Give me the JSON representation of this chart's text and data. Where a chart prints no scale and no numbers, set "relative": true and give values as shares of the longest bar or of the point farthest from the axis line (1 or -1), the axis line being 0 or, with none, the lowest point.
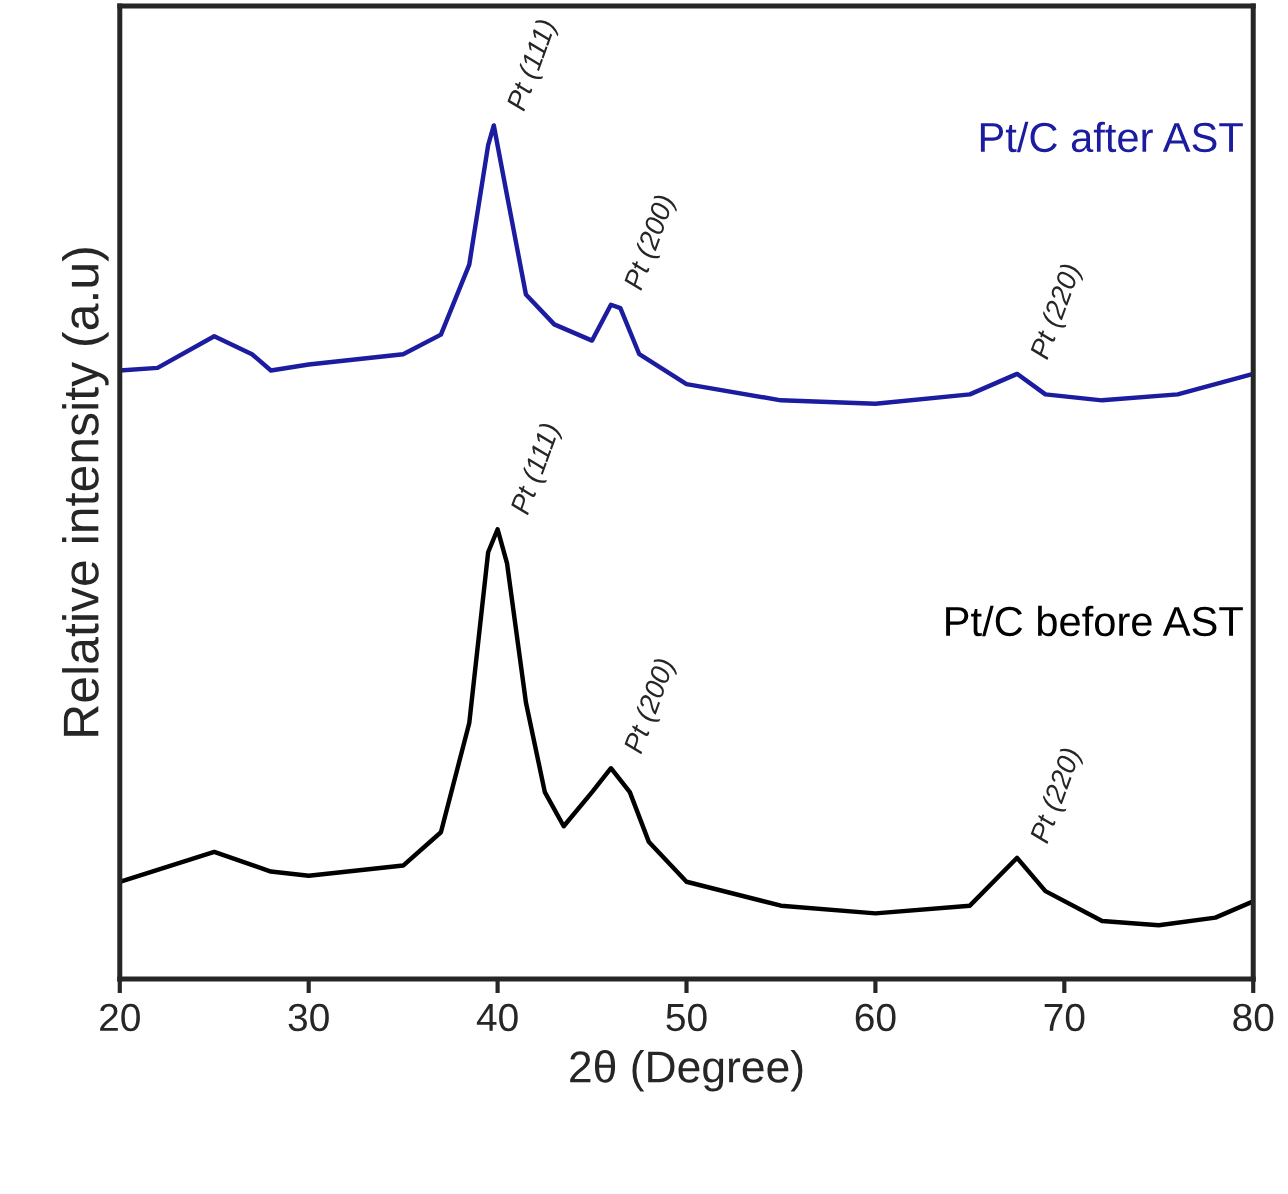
{
  "chart_data": {
    "type": "line",
    "xlabel": "2θ (Degree)",
    "ylabel": "Relative intensity (a.u)",
    "relative": true,
    "xlim": [
      20,
      80
    ],
    "xticks": [
      20,
      30,
      40,
      50,
      60,
      70,
      80
    ],
    "tick_labels": "x",
    "grid": false,
    "legend": false,
    "marker": "none",
    "line_style": "solid",
    "series": [
      {
        "name": "Pt/C after AST",
        "color": "#1c1ca0",
        "x": [
          20,
          22,
          25,
          27,
          28,
          30,
          35,
          37,
          38.5,
          39.5,
          39.8,
          40.5,
          41.5,
          43,
          45,
          46,
          46.5,
          47.5,
          50,
          55,
          60,
          65,
          67.5,
          69,
          72,
          76,
          80
        ],
        "values": [
          0.713,
          0.716,
          0.753,
          0.732,
          0.713,
          0.72,
          0.732,
          0.755,
          0.837,
          0.977,
          1.0,
          0.918,
          0.802,
          0.767,
          0.748,
          0.79,
          0.786,
          0.732,
          0.697,
          0.678,
          0.674,
          0.685,
          0.709,
          0.685,
          0.678,
          0.685,
          0.709
        ]
      },
      {
        "name": "Pt/C before AST",
        "color": "#000000",
        "x": [
          20,
          25,
          28,
          30,
          35,
          37,
          38.5,
          39.5,
          40,
          40.5,
          41.5,
          42.5,
          43.5,
          45,
          46,
          47,
          48,
          50,
          55,
          60,
          65,
          67.5,
          69,
          72,
          75,
          78,
          80
        ],
        "values": [
          0.114,
          0.149,
          0.126,
          0.121,
          0.133,
          0.172,
          0.3,
          0.5,
          0.527,
          0.487,
          0.324,
          0.219,
          0.179,
          0.219,
          0.247,
          0.219,
          0.161,
          0.114,
          0.086,
          0.077,
          0.086,
          0.142,
          0.103,
          0.068,
          0.063,
          0.072,
          0.091
        ]
      }
    ],
    "annotations": [
      {
        "text": "Pt (111)",
        "x": 39.8,
        "y": 1.0
      },
      {
        "text": "Pt (200)",
        "x": 46,
        "y": 0.79
      },
      {
        "text": "Pt (220)",
        "x": 67.5,
        "y": 0.709
      },
      {
        "text": "Pt (111)",
        "x": 40,
        "y": 0.527
      },
      {
        "text": "Pt (200)",
        "x": 46,
        "y": 0.247
      },
      {
        "text": "Pt (220)",
        "x": 67.5,
        "y": 0.142
      }
    ]
  }
}
